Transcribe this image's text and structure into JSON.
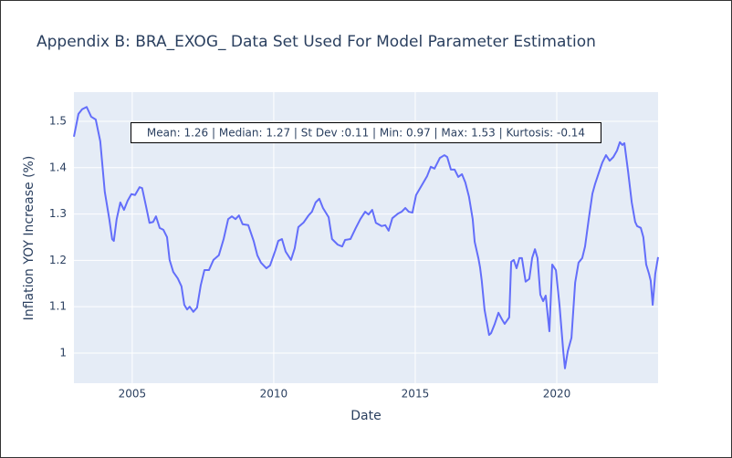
{
  "chart_data": {
    "type": "line",
    "title": "Appendix B: BRA_EXOG_ Data Set Used For Model Parameter Estimation",
    "x_label": "Date",
    "y_label": "Inflation YOY Increase (%)",
    "annotation": "Mean: 1.26 | Median: 1.27 | St Dev :0.11 | Min: 0.97 | Max: 1.53 | Kurtosis: -0.14",
    "x": [
      2002.94,
      2003.1,
      2003.23,
      2003.39,
      2003.55,
      2003.71,
      2003.87,
      2004.03,
      2004.19,
      2004.29,
      2004.35,
      2004.45,
      2004.58,
      2004.71,
      2004.84,
      2004.97,
      2005.1,
      2005.26,
      2005.35,
      2005.48,
      2005.61,
      2005.74,
      2005.84,
      2005.97,
      2006.1,
      2006.23,
      2006.32,
      2006.45,
      2006.61,
      2006.74,
      2006.84,
      2006.94,
      2007.03,
      2007.16,
      2007.29,
      2007.42,
      2007.55,
      2007.71,
      2007.87,
      2008.06,
      2008.23,
      2008.39,
      2008.52,
      2008.65,
      2008.77,
      2008.9,
      2009.1,
      2009.29,
      2009.42,
      2009.55,
      2009.74,
      2009.87,
      2010.06,
      2010.16,
      2010.29,
      2010.42,
      2010.61,
      2010.74,
      2010.87,
      2011.06,
      2011.23,
      2011.35,
      2011.48,
      2011.61,
      2011.74,
      2011.94,
      2012.06,
      2012.26,
      2012.42,
      2012.52,
      2012.71,
      2012.9,
      2013.06,
      2013.23,
      2013.35,
      2013.48,
      2013.61,
      2013.81,
      2013.94,
      2014.06,
      2014.19,
      2014.39,
      2014.52,
      2014.65,
      2014.77,
      2014.9,
      2015.03,
      2015.23,
      2015.42,
      2015.55,
      2015.68,
      2015.87,
      2016.03,
      2016.13,
      2016.26,
      2016.39,
      2016.52,
      2016.65,
      2016.77,
      2016.9,
      2017.03,
      2017.1,
      2017.23,
      2017.29,
      2017.35,
      2017.45,
      2017.61,
      2017.68,
      2017.81,
      2017.94,
      2018.06,
      2018.16,
      2018.32,
      2018.39,
      2018.48,
      2018.58,
      2018.68,
      2018.77,
      2018.9,
      2019.03,
      2019.13,
      2019.23,
      2019.32,
      2019.42,
      2019.52,
      2019.61,
      2019.74,
      2019.84,
      2019.97,
      2020.1,
      2020.23,
      2020.29,
      2020.39,
      2020.52,
      2020.65,
      2020.77,
      2020.9,
      2021.0,
      2021.13,
      2021.26,
      2021.35,
      2021.48,
      2021.61,
      2021.74,
      2021.87,
      2022.0,
      2022.13,
      2022.23,
      2022.32,
      2022.39,
      2022.52,
      2022.65,
      2022.77,
      2022.84,
      2022.97,
      2023.06,
      2023.16,
      2023.26,
      2023.32,
      2023.39,
      2023.48,
      2023.58
    ],
    "series": [
      {
        "color": "#636efa",
        "values": [
          1.467,
          1.516,
          1.526,
          1.531,
          1.51,
          1.504,
          1.457,
          1.348,
          1.289,
          1.246,
          1.242,
          1.289,
          1.325,
          1.309,
          1.329,
          1.343,
          1.341,
          1.358,
          1.356,
          1.319,
          1.281,
          1.283,
          1.295,
          1.27,
          1.266,
          1.25,
          1.201,
          1.175,
          1.161,
          1.144,
          1.104,
          1.094,
          1.1,
          1.089,
          1.098,
          1.146,
          1.179,
          1.179,
          1.201,
          1.211,
          1.246,
          1.289,
          1.295,
          1.289,
          1.297,
          1.278,
          1.276,
          1.242,
          1.211,
          1.195,
          1.183,
          1.189,
          1.222,
          1.242,
          1.246,
          1.219,
          1.201,
          1.226,
          1.272,
          1.282,
          1.297,
          1.305,
          1.325,
          1.333,
          1.313,
          1.293,
          1.246,
          1.234,
          1.23,
          1.244,
          1.246,
          1.27,
          1.289,
          1.305,
          1.299,
          1.309,
          1.281,
          1.274,
          1.276,
          1.264,
          1.291,
          1.301,
          1.305,
          1.313,
          1.305,
          1.303,
          1.341,
          1.362,
          1.382,
          1.402,
          1.398,
          1.421,
          1.427,
          1.423,
          1.396,
          1.396,
          1.38,
          1.386,
          1.368,
          1.337,
          1.289,
          1.24,
          1.205,
          1.185,
          1.156,
          1.093,
          1.039,
          1.043,
          1.063,
          1.087,
          1.073,
          1.063,
          1.077,
          1.197,
          1.201,
          1.183,
          1.205,
          1.205,
          1.154,
          1.16,
          1.205,
          1.224,
          1.205,
          1.126,
          1.112,
          1.124,
          1.047,
          1.191,
          1.179,
          1.102,
          1.004,
          0.967,
          1.004,
          1.033,
          1.152,
          1.195,
          1.205,
          1.23,
          1.289,
          1.344,
          1.364,
          1.388,
          1.411,
          1.427,
          1.415,
          1.423,
          1.437,
          1.455,
          1.449,
          1.453,
          1.392,
          1.325,
          1.283,
          1.274,
          1.27,
          1.25,
          1.191,
          1.171,
          1.156,
          1.104,
          1.171,
          1.207
        ]
      }
    ],
    "xlim": [
      2002.94,
      2023.58
    ],
    "xticks": [
      2005,
      2010,
      2015,
      2020
    ],
    "ylim": [
      0.935,
      1.563
    ],
    "yticks": [
      1,
      1.1,
      1.2,
      1.3,
      1.4,
      1.5
    ],
    "grid": true
  }
}
